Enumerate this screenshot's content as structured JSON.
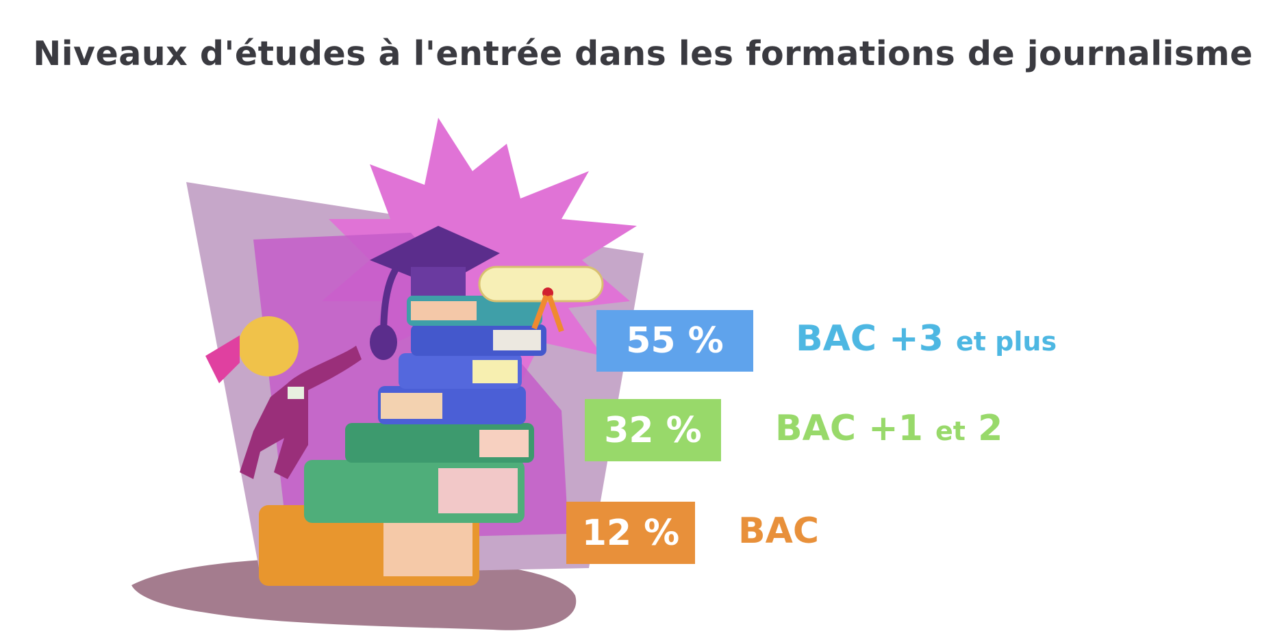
{
  "title": "Niveaux d'études à l'entrée dans les formations de journalisme",
  "chart_data": {
    "type": "table",
    "title": "Niveaux d'études à l'entrée dans les formations de journalisme",
    "categories": [
      "BAC +3 et plus",
      "BAC +1 et 2",
      "BAC"
    ],
    "values": [
      55,
      32,
      12
    ],
    "unit": "%",
    "rows": [
      {
        "value_label": "55 %",
        "label_main": "BAC +3",
        "label_small": "et plus",
        "box_color": "#5fa3ec",
        "text_color": "#4db7e2"
      },
      {
        "value_label": "32 %",
        "label_main": "BAC +1",
        "label_small": "et",
        "label_tail": "2",
        "box_color": "#98d96a",
        "text_color": "#98d96a"
      },
      {
        "value_label": "12 %",
        "label_main": "BAC",
        "label_small": "",
        "box_color": "#e8903a",
        "text_color": "#e8903a"
      }
    ]
  },
  "illustration": "books-stack-graduation-clipart-icon"
}
